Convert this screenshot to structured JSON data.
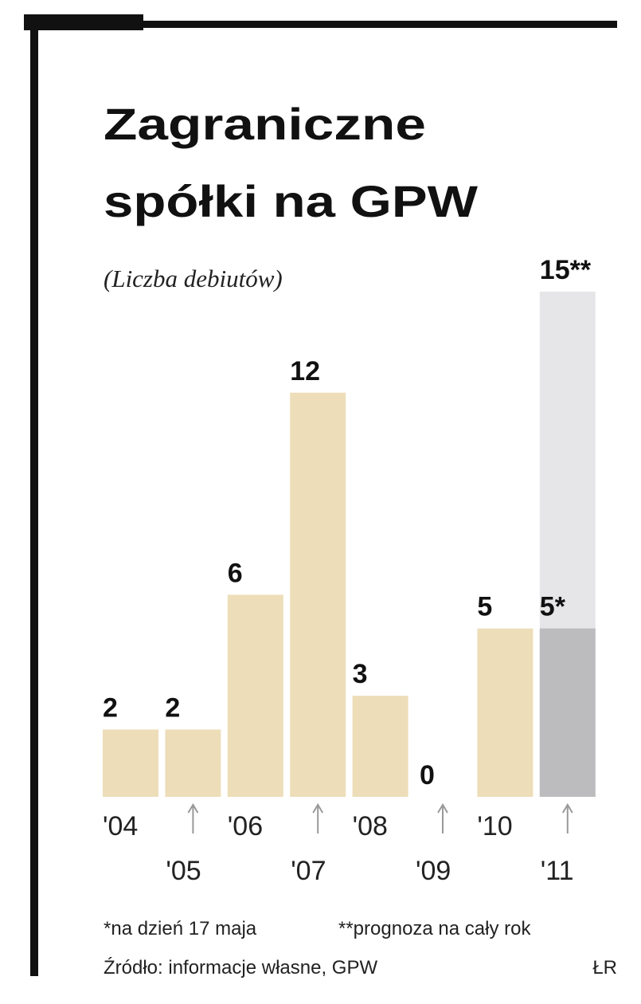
{
  "chart_data": {
    "type": "bar",
    "title_lines": [
      "Zagraniczne",
      "spółki na GPW"
    ],
    "subtitle": "(Liczba debiutów)",
    "categories": [
      "'04",
      "'05",
      "'06",
      "'07",
      "'08",
      "'09",
      "'10",
      "'11"
    ],
    "values": [
      2,
      2,
      6,
      12,
      3,
      0,
      5,
      5
    ],
    "value_labels": [
      "2",
      "2",
      "6",
      "12",
      "3",
      "0",
      "5",
      "5*"
    ],
    "colors": [
      "#eddeb9",
      "#eddeb9",
      "#eddeb9",
      "#eddeb9",
      "#eddeb9",
      "#eddeb9",
      "#eddeb9",
      "#bcbcbf"
    ],
    "forecast": {
      "value": 15,
      "value_label": "15**",
      "color": "#e6e6e8"
    },
    "notes": [
      "*na dzień 17 maja",
      "**prognoza na cały rok"
    ],
    "source": "Źródło: informacje własne, GPW",
    "author": "ŁR"
  }
}
